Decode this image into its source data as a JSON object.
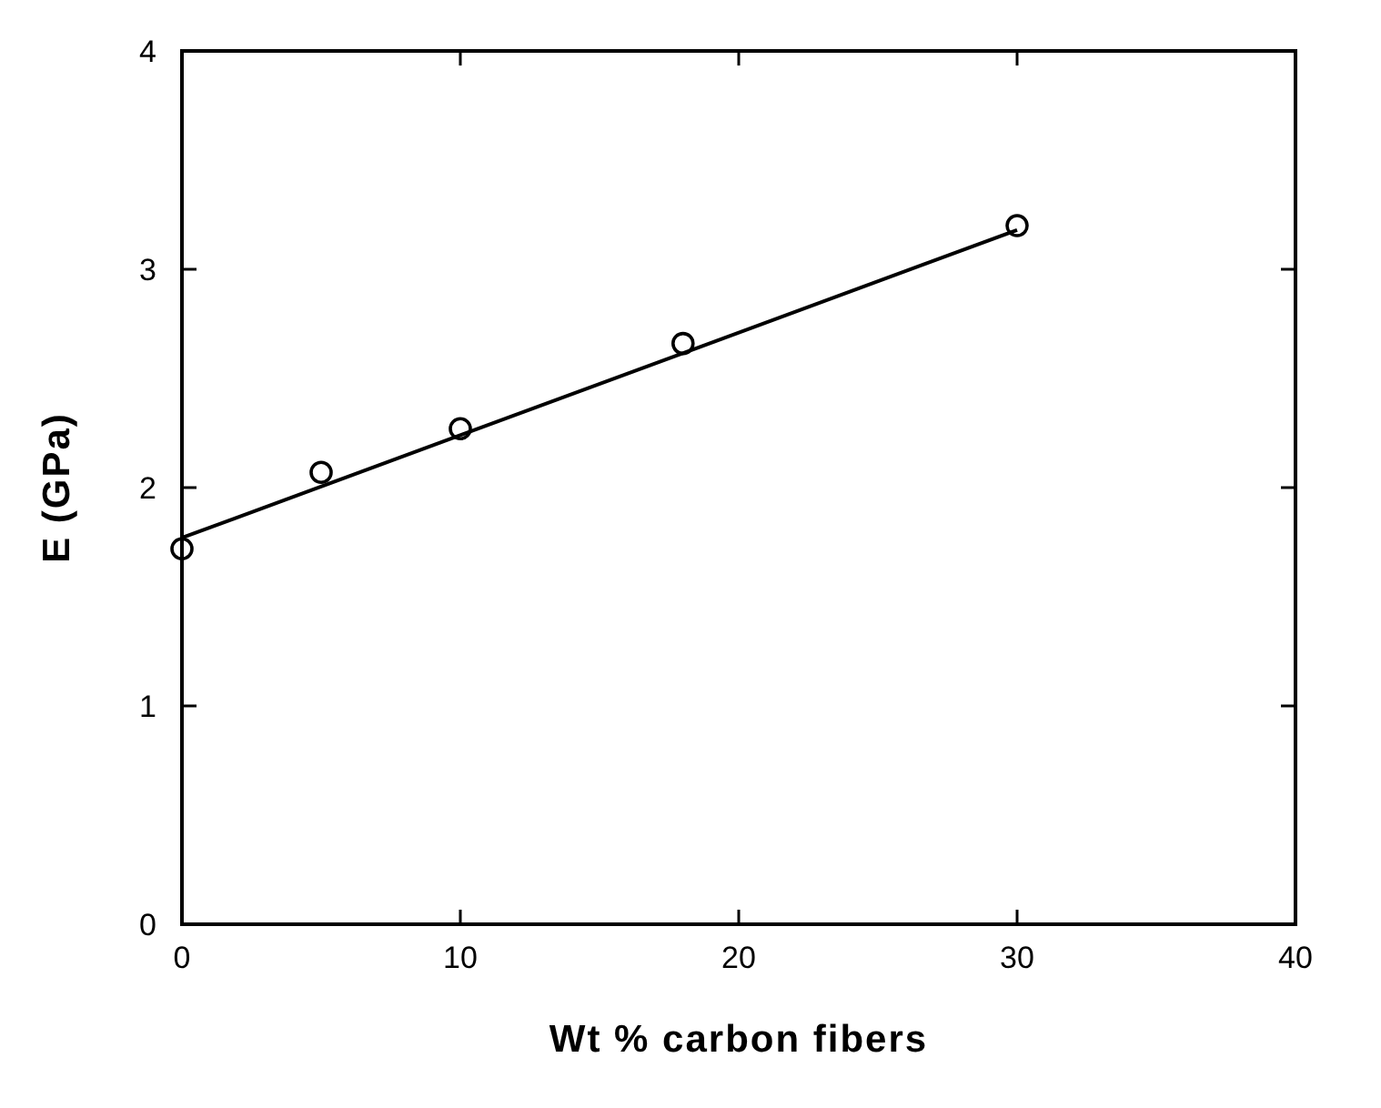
{
  "chart_data": {
    "type": "scatter",
    "xlabel": "Wt % carbon fibers",
    "ylabel": "E (GPa)",
    "xlim": [
      0,
      40
    ],
    "ylim": [
      0,
      4
    ],
    "xticks": [
      0,
      10,
      20,
      30,
      40
    ],
    "yticks": [
      0,
      1,
      2,
      3,
      4
    ],
    "grid": false,
    "series": [
      {
        "color": "#000000",
        "marker": "circle",
        "x": [
          0,
          5,
          10,
          18,
          30
        ],
        "values": [
          1.72,
          2.07,
          2.27,
          2.66,
          3.2
        ]
      },
      {
        "type": "line",
        "color": "#000000",
        "marker": "none",
        "x": [
          0,
          30
        ],
        "values": [
          1.77,
          3.18
        ]
      }
    ]
  }
}
